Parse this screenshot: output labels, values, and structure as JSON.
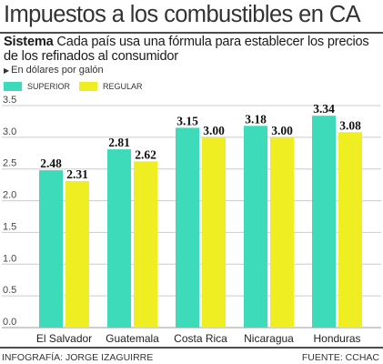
{
  "header": {
    "title": "Impuestos a los combustibles en CA",
    "subtitle_lead": "Sistema",
    "subtitle_text": " Cada país usa una fórmula para establecer los precios de los refinados al consumidor",
    "unit_label": "En dólares por galón"
  },
  "footer": {
    "credit": "INFOGRAFÍA: JORGE IZAGUIRRE",
    "source": "FUENTE: CCHAC"
  },
  "colors": {
    "superior": "#3ddbb9",
    "regular": "#eeee22",
    "grid": "#cccccc",
    "text": "#1a1a1a"
  },
  "chart_data": {
    "type": "bar",
    "categories": [
      "El Salvador",
      "Guatemala",
      "Costa Rica",
      "Nicaragua",
      "Honduras"
    ],
    "series": [
      {
        "name": "SUPERIOR",
        "values": [
          2.48,
          2.81,
          3.15,
          3.18,
          3.34
        ],
        "labels": [
          "2.48",
          "2.81",
          "3.15",
          "3.18",
          "3.34"
        ]
      },
      {
        "name": "REGULAR",
        "values": [
          2.31,
          2.62,
          3.0,
          3.0,
          3.08
        ],
        "labels": [
          "2.31",
          "2.62",
          "3.00",
          "3.00",
          "3.08"
        ]
      }
    ],
    "yticks": [
      "0.0",
      "0.5",
      "1.0",
      "1.5",
      "2.0",
      "2.5",
      "3.0",
      "3.5"
    ],
    "ylim": [
      0,
      3.5
    ],
    "grid": true,
    "legend": "top-left"
  }
}
